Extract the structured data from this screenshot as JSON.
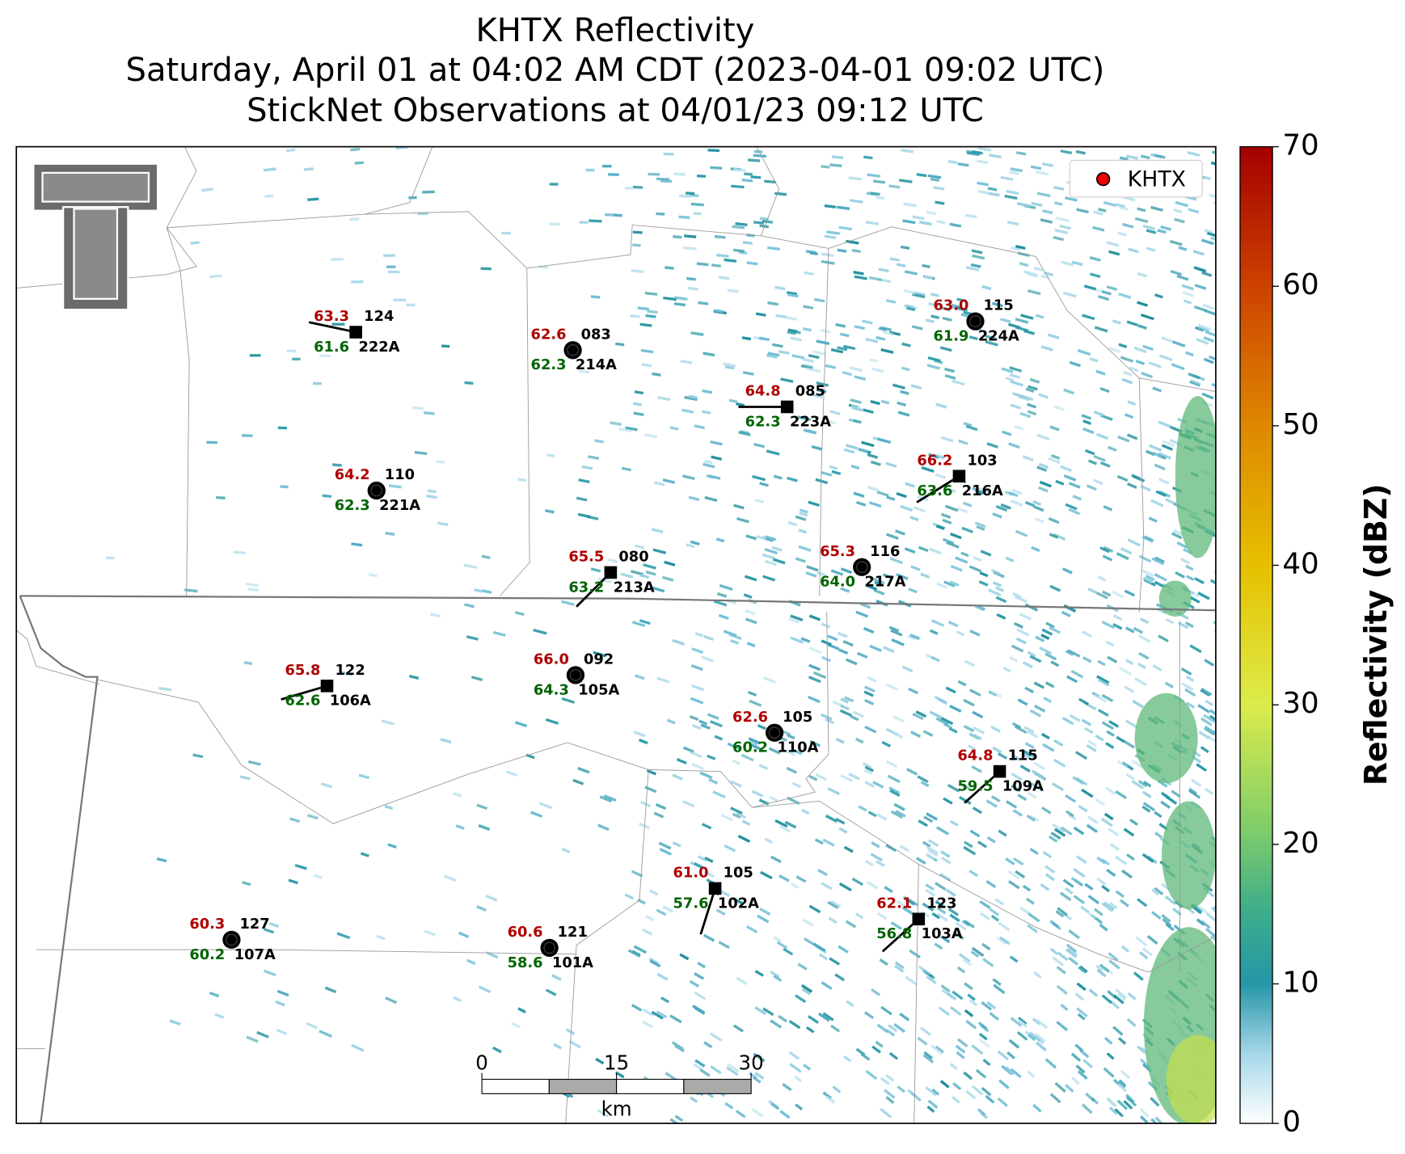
{
  "title": [
    "KHTX Reflectivity",
    "Saturday, April 01 at 04:02 AM CDT (2023-04-01 09:02 UTC)",
    "StickNet Observations at 04/01/23 09:12 UTC"
  ],
  "legend": {
    "label": "KHTX"
  },
  "colorbar": {
    "label": "Reflectivity (dBZ)",
    "lim": [
      0,
      70
    ],
    "ticks": [
      0,
      10,
      20,
      30,
      40,
      50,
      60,
      70
    ]
  },
  "scale_bar": {
    "ticks": [
      0,
      15,
      30
    ],
    "unit": "km"
  },
  "stations": [
    {
      "id": "222A",
      "temperature": "63.3",
      "dewpoint": "61.6",
      "code": "124"
    },
    {
      "id": "214A",
      "temperature": "62.6",
      "dewpoint": "62.3",
      "code": "083"
    },
    {
      "id": "223A",
      "temperature": "64.8",
      "dewpoint": "62.3",
      "code": "085"
    },
    {
      "id": "224A",
      "temperature": "63.0",
      "dewpoint": "61.9",
      "code": "115"
    },
    {
      "id": "221A",
      "temperature": "64.2",
      "dewpoint": "62.3",
      "code": "110"
    },
    {
      "id": "216A",
      "temperature": "66.2",
      "dewpoint": "63.6",
      "code": "103"
    },
    {
      "id": "213A",
      "temperature": "65.5",
      "dewpoint": "63.2",
      "code": "080"
    },
    {
      "id": "217A",
      "temperature": "65.3",
      "dewpoint": "64.0",
      "code": "116"
    },
    {
      "id": "106A",
      "temperature": "65.8",
      "dewpoint": "62.6",
      "code": "122"
    },
    {
      "id": "105A",
      "temperature": "66.0",
      "dewpoint": "64.3",
      "code": "092"
    },
    {
      "id": "110A",
      "temperature": "62.6",
      "dewpoint": "60.2",
      "code": "105"
    },
    {
      "id": "109A",
      "temperature": "64.8",
      "dewpoint": "59.5",
      "code": "115"
    },
    {
      "id": "102A",
      "temperature": "61.0",
      "dewpoint": "57.6",
      "code": "105"
    },
    {
      "id": "103A",
      "temperature": "62.1",
      "dewpoint": "56.8",
      "code": "123"
    },
    {
      "id": "107A",
      "temperature": "60.3",
      "dewpoint": "60.2",
      "code": "127"
    },
    {
      "id": "101A",
      "temperature": "60.6",
      "dewpoint": "58.6",
      "code": "121"
    }
  ]
}
